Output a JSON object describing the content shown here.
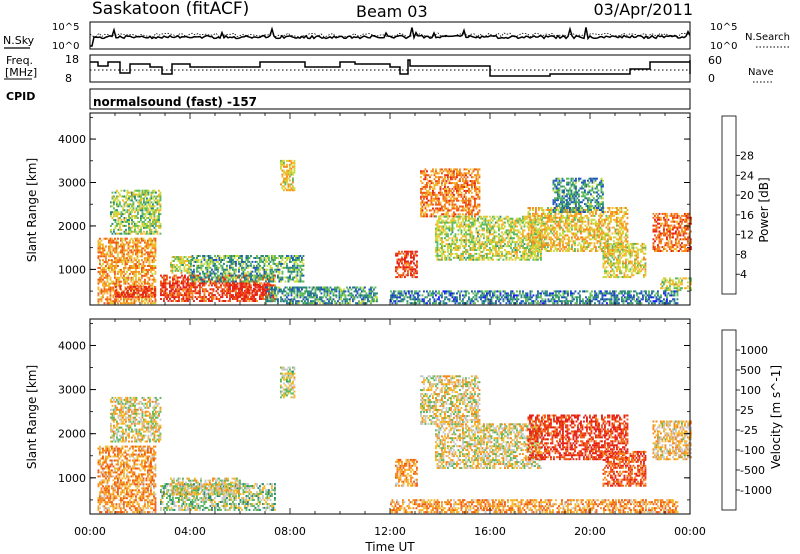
{
  "header": {
    "station": "Saskatoon (fitACF)",
    "beam": "Beam 03",
    "date": "03/Apr/2011"
  },
  "top_panels": {
    "nsky_label": "N.Sky",
    "nsky_ticks": [
      "10^5",
      "10^0"
    ],
    "nsearch_label": "N.Search",
    "nsearch_ticks": [
      "10^5",
      "10^0"
    ],
    "freq_label_1": "Freq.",
    "freq_label_2": "[MHz]",
    "freq_ticks": [
      "18",
      "8"
    ],
    "nave_label": "Nave",
    "nave_ticks": [
      "60",
      "0"
    ],
    "cpid_label": "CPID",
    "cpid_text": "normalsound (fast) -157"
  },
  "chart_data": [
    {
      "type": "heatmap",
      "name": "power",
      "xlabel": "",
      "ylabel": "Slant Range [km]",
      "xlim": [
        0,
        24
      ],
      "ylim": [
        180,
        4600
      ],
      "yticks": [
        "1000",
        "2000",
        "3000",
        "4000"
      ],
      "colorbar_label": "Power [dB]",
      "colorbar_ticks": [
        "4",
        "8",
        "12",
        "16",
        "20",
        "24",
        "28"
      ],
      "colors": [
        "#1a1aff",
        "#2255bb",
        "#2a8a7a",
        "#5cba5c",
        "#c8dc3c",
        "#f5b82a",
        "#f58a1e",
        "#f05a12",
        "#e62218"
      ],
      "regions": [
        {
          "t": [
            0.3,
            2.6
          ],
          "r": [
            200,
            1700
          ],
          "level": 0.7
        },
        {
          "t": [
            1.0,
            2.6
          ],
          "r": [
            350,
            600
          ],
          "level": 0.95
        },
        {
          "t": [
            2.8,
            7.4
          ],
          "r": [
            250,
            850
          ],
          "level": 0.9
        },
        {
          "t": [
            5.5,
            7.2
          ],
          "r": [
            350,
            650
          ],
          "level": 1.0
        },
        {
          "t": [
            3.2,
            4.0
          ],
          "r": [
            900,
            1300
          ],
          "level": 0.5
        },
        {
          "t": [
            4.0,
            8.5
          ],
          "r": [
            700,
            1300
          ],
          "level": 0.35
        },
        {
          "t": [
            7.6,
            8.2
          ],
          "r": [
            2800,
            3500
          ],
          "level": 0.6
        },
        {
          "t": [
            0.8,
            2.8
          ],
          "r": [
            1800,
            2800
          ],
          "level": 0.45
        },
        {
          "t": [
            12.2,
            13.1
          ],
          "r": [
            800,
            1400
          ],
          "level": 0.9
        },
        {
          "t": [
            13.2,
            15.6
          ],
          "r": [
            2200,
            3300
          ],
          "level": 0.75
        },
        {
          "t": [
            13.8,
            18.0
          ],
          "r": [
            1200,
            2200
          ],
          "level": 0.5
        },
        {
          "t": [
            17.5,
            21.5
          ],
          "r": [
            1400,
            2400
          ],
          "level": 0.6
        },
        {
          "t": [
            20.5,
            22.2
          ],
          "r": [
            800,
            1600
          ],
          "level": 0.55
        },
        {
          "t": [
            22.5,
            24.0
          ],
          "r": [
            1400,
            2300
          ],
          "level": 0.8
        },
        {
          "t": [
            22.8,
            24.0
          ],
          "r": [
            500,
            800
          ],
          "level": 0.5
        },
        {
          "t": [
            18.5,
            20.5
          ],
          "r": [
            2300,
            3100
          ],
          "level": 0.3
        },
        {
          "t": [
            7.0,
            11.5
          ],
          "r": [
            200,
            600
          ],
          "level": 0.3
        },
        {
          "t": [
            12.0,
            23.5
          ],
          "r": [
            200,
            500
          ],
          "level": 0.25
        }
      ]
    },
    {
      "type": "heatmap",
      "name": "velocity",
      "xlabel": "Time UT",
      "ylabel": "Slant Range [km]",
      "xlim": [
        0,
        24
      ],
      "ylim": [
        180,
        4600
      ],
      "xticks": [
        "00:00",
        "04:00",
        "08:00",
        "12:00",
        "16:00",
        "20:00",
        "00:00"
      ],
      "yticks": [
        "1000",
        "2000",
        "3000",
        "4000"
      ],
      "colorbar_label": "Velocity [m s^-1]",
      "colorbar_ticks": [
        "1000",
        "500",
        "100",
        "25",
        "-25",
        "-100",
        "-500",
        "-1000"
      ],
      "colors": [
        "#e62218",
        "#f05a12",
        "#f58a1e",
        "#f5b82a",
        "#c8c8c8",
        "#5cba5c",
        "#2a8a7a",
        "#2255bb",
        "#1a1aff"
      ],
      "regions": [
        {
          "t": [
            0.3,
            2.6
          ],
          "r": [
            200,
            1700
          ],
          "level": 0.3
        },
        {
          "t": [
            2.8,
            7.4
          ],
          "r": [
            250,
            850
          ],
          "level": 0.55
        },
        {
          "t": [
            3.2,
            6.0
          ],
          "r": [
            600,
            1000
          ],
          "level": 0.45
        },
        {
          "t": [
            7.6,
            8.2
          ],
          "r": [
            2800,
            3500
          ],
          "level": 0.5
        },
        {
          "t": [
            12.2,
            13.1
          ],
          "r": [
            800,
            1400
          ],
          "level": 0.3
        },
        {
          "t": [
            13.2,
            15.6
          ],
          "r": [
            2200,
            3300
          ],
          "level": 0.45
        },
        {
          "t": [
            13.8,
            18.0
          ],
          "r": [
            1200,
            2200
          ],
          "level": 0.45
        },
        {
          "t": [
            17.5,
            21.5
          ],
          "r": [
            1400,
            2400
          ],
          "level": 0.08
        },
        {
          "t": [
            20.5,
            22.2
          ],
          "r": [
            800,
            1600
          ],
          "level": 0.15
        },
        {
          "t": [
            22.5,
            24.0
          ],
          "r": [
            1400,
            2300
          ],
          "level": 0.4
        },
        {
          "t": [
            0.8,
            2.8
          ],
          "r": [
            1800,
            2800
          ],
          "level": 0.45
        },
        {
          "t": [
            12.0,
            23.5
          ],
          "r": [
            200,
            500
          ],
          "level": 0.3
        }
      ]
    }
  ]
}
